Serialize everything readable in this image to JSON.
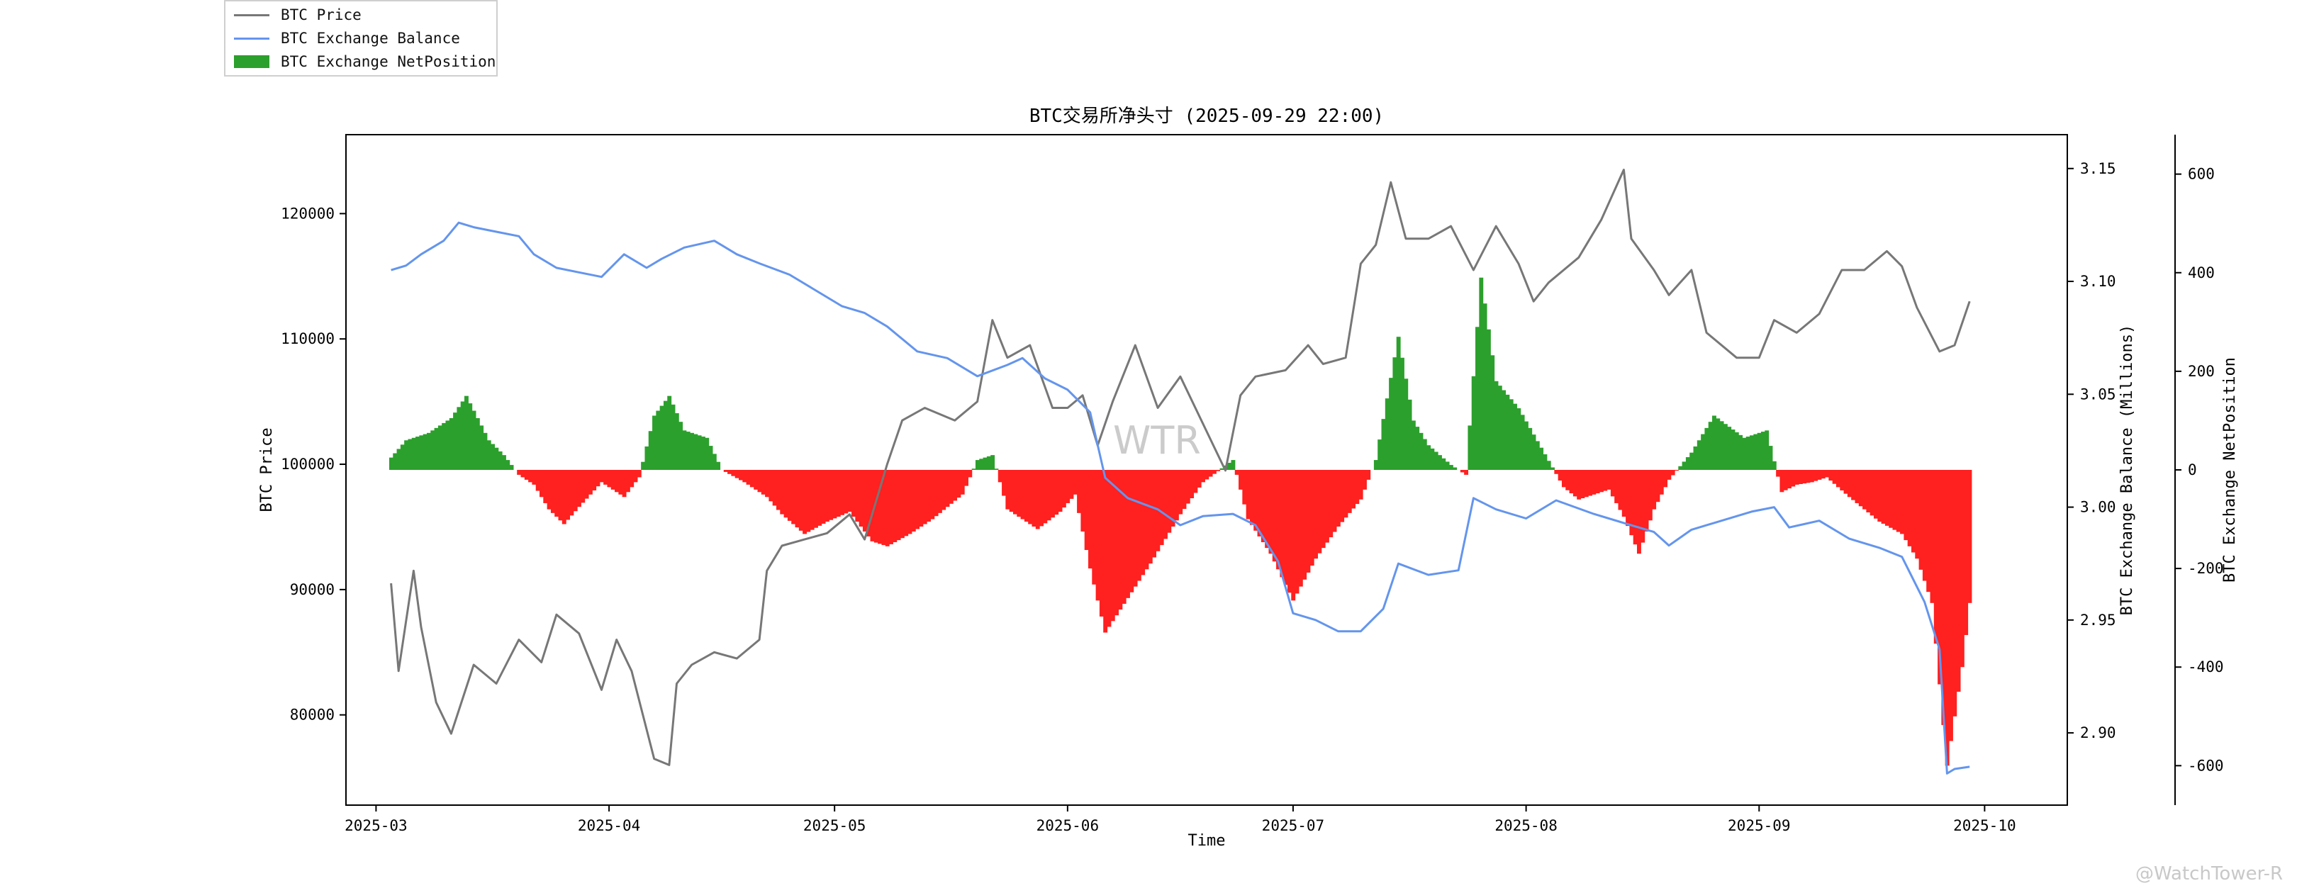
{
  "chart_data": {
    "type": "line",
    "title": "BTC交易所净头寸 (2025-09-29 22:00)",
    "xlabel": "Time",
    "ylabel_left": "BTC Price",
    "ylabel_right1": "BTC Exchange Balance (Millions)",
    "ylabel_right2": "BTC Exchange NetPosition",
    "x_ticks": [
      "2025-03",
      "2025-04",
      "2025-05",
      "2025-06",
      "2025-07",
      "2025-08",
      "2025-09",
      "2025-10"
    ],
    "x_range": [
      "2025-02-25",
      "2025-10-12"
    ],
    "y_left": {
      "range": [
        72800,
        126300
      ],
      "ticks": [
        "80000",
        "90000",
        "100000",
        "110000",
        "120000"
      ]
    },
    "y_right1": {
      "range": [
        2.868,
        3.165
      ],
      "ticks": [
        "2.90",
        "2.95",
        "3.00",
        "3.05",
        "3.10",
        "3.15"
      ]
    },
    "y_right2": {
      "range": [
        -680,
        680
      ],
      "ticks": [
        "-600",
        "-400",
        "-200",
        "0",
        "200",
        "400",
        "600"
      ]
    },
    "grid": false,
    "legend_position": "top-left",
    "series": [
      {
        "name": "BTC Price",
        "kind": "line",
        "axis": "left",
        "color": "#777777",
        "points": [
          [
            "2025-03-03",
            90500
          ],
          [
            "2025-03-04",
            83500
          ],
          [
            "2025-03-06",
            91500
          ],
          [
            "2025-03-07",
            87000
          ],
          [
            "2025-03-09",
            81000
          ],
          [
            "2025-03-11",
            78500
          ],
          [
            "2025-03-14",
            84000
          ],
          [
            "2025-03-17",
            82500
          ],
          [
            "2025-03-20",
            86000
          ],
          [
            "2025-03-23",
            84200
          ],
          [
            "2025-03-25",
            88000
          ],
          [
            "2025-03-28",
            86500
          ],
          [
            "2025-03-31",
            82000
          ],
          [
            "2025-04-02",
            86000
          ],
          [
            "2025-04-04",
            83500
          ],
          [
            "2025-04-07",
            76500
          ],
          [
            "2025-04-09",
            76000
          ],
          [
            "2025-04-10",
            82500
          ],
          [
            "2025-04-12",
            84000
          ],
          [
            "2025-04-15",
            85000
          ],
          [
            "2025-04-18",
            84500
          ],
          [
            "2025-04-21",
            86000
          ],
          [
            "2025-04-22",
            91500
          ],
          [
            "2025-04-24",
            93500
          ],
          [
            "2025-04-27",
            94000
          ],
          [
            "2025-04-30",
            94500
          ],
          [
            "2025-05-03",
            96000
          ],
          [
            "2025-05-05",
            94000
          ],
          [
            "2025-05-08",
            100000
          ],
          [
            "2025-05-10",
            103500
          ],
          [
            "2025-05-13",
            104500
          ],
          [
            "2025-05-17",
            103500
          ],
          [
            "2025-05-20",
            105000
          ],
          [
            "2025-05-22",
            111500
          ],
          [
            "2025-05-24",
            108500
          ],
          [
            "2025-05-27",
            109500
          ],
          [
            "2025-05-30",
            104500
          ],
          [
            "2025-06-01",
            104500
          ],
          [
            "2025-06-03",
            105500
          ],
          [
            "2025-06-05",
            101500
          ],
          [
            "2025-06-07",
            105000
          ],
          [
            "2025-06-10",
            109500
          ],
          [
            "2025-06-13",
            104500
          ],
          [
            "2025-06-16",
            107000
          ],
          [
            "2025-06-18",
            104500
          ],
          [
            "2025-06-22",
            99500
          ],
          [
            "2025-06-24",
            105500
          ],
          [
            "2025-06-26",
            107000
          ],
          [
            "2025-06-30",
            107500
          ],
          [
            "2025-07-03",
            109500
          ],
          [
            "2025-07-05",
            108000
          ],
          [
            "2025-07-08",
            108500
          ],
          [
            "2025-07-10",
            116000
          ],
          [
            "2025-07-12",
            117500
          ],
          [
            "2025-07-14",
            122500
          ],
          [
            "2025-07-16",
            118000
          ],
          [
            "2025-07-19",
            118000
          ],
          [
            "2025-07-22",
            119000
          ],
          [
            "2025-07-25",
            115500
          ],
          [
            "2025-07-28",
            119000
          ],
          [
            "2025-07-31",
            116000
          ],
          [
            "2025-08-02",
            113000
          ],
          [
            "2025-08-04",
            114500
          ],
          [
            "2025-08-08",
            116500
          ],
          [
            "2025-08-11",
            119500
          ],
          [
            "2025-08-14",
            123500
          ],
          [
            "2025-08-15",
            118000
          ],
          [
            "2025-08-18",
            115500
          ],
          [
            "2025-08-20",
            113500
          ],
          [
            "2025-08-23",
            115500
          ],
          [
            "2025-08-25",
            110500
          ],
          [
            "2025-08-29",
            108500
          ],
          [
            "2025-09-01",
            108500
          ],
          [
            "2025-09-03",
            111500
          ],
          [
            "2025-09-06",
            110500
          ],
          [
            "2025-09-09",
            112000
          ],
          [
            "2025-09-12",
            115500
          ],
          [
            "2025-09-15",
            115500
          ],
          [
            "2025-09-18",
            117000
          ],
          [
            "2025-09-20",
            115800
          ],
          [
            "2025-09-22",
            112500
          ],
          [
            "2025-09-25",
            109000
          ],
          [
            "2025-09-27",
            109500
          ],
          [
            "2025-09-29",
            113000
          ]
        ]
      },
      {
        "name": "BTC Exchange Balance",
        "kind": "line",
        "axis": "right1",
        "color": "#6495ED",
        "points": [
          [
            "2025-03-03",
            3.105
          ],
          [
            "2025-03-05",
            3.107
          ],
          [
            "2025-03-07",
            3.112
          ],
          [
            "2025-03-10",
            3.118
          ],
          [
            "2025-03-12",
            3.126
          ],
          [
            "2025-03-14",
            3.124
          ],
          [
            "2025-03-17",
            3.122
          ],
          [
            "2025-03-20",
            3.12
          ],
          [
            "2025-03-22",
            3.112
          ],
          [
            "2025-03-25",
            3.106
          ],
          [
            "2025-03-28",
            3.104
          ],
          [
            "2025-03-31",
            3.102
          ],
          [
            "2025-04-03",
            3.112
          ],
          [
            "2025-04-06",
            3.106
          ],
          [
            "2025-04-08",
            3.11
          ],
          [
            "2025-04-11",
            3.115
          ],
          [
            "2025-04-15",
            3.118
          ],
          [
            "2025-04-18",
            3.112
          ],
          [
            "2025-04-21",
            3.108
          ],
          [
            "2025-04-25",
            3.103
          ],
          [
            "2025-04-28",
            3.097
          ],
          [
            "2025-05-02",
            3.089
          ],
          [
            "2025-05-05",
            3.086
          ],
          [
            "2025-05-08",
            3.08
          ],
          [
            "2025-05-12",
            3.069
          ],
          [
            "2025-05-16",
            3.066
          ],
          [
            "2025-05-20",
            3.058
          ],
          [
            "2025-05-24",
            3.063
          ],
          [
            "2025-05-26",
            3.066
          ],
          [
            "2025-05-29",
            3.057
          ],
          [
            "2025-06-01",
            3.052
          ],
          [
            "2025-06-04",
            3.042
          ],
          [
            "2025-06-06",
            3.013
          ],
          [
            "2025-06-09",
            3.004
          ],
          [
            "2025-06-13",
            2.999
          ],
          [
            "2025-06-16",
            2.992
          ],
          [
            "2025-06-19",
            2.996
          ],
          [
            "2025-06-23",
            2.997
          ],
          [
            "2025-06-26",
            2.992
          ],
          [
            "2025-06-29",
            2.976
          ],
          [
            "2025-07-01",
            2.953
          ],
          [
            "2025-07-04",
            2.95
          ],
          [
            "2025-07-07",
            2.945
          ],
          [
            "2025-07-10",
            2.945
          ],
          [
            "2025-07-13",
            2.955
          ],
          [
            "2025-07-15",
            2.975
          ],
          [
            "2025-07-19",
            2.97
          ],
          [
            "2025-07-23",
            2.972
          ],
          [
            "2025-07-25",
            3.004
          ],
          [
            "2025-07-28",
            2.999
          ],
          [
            "2025-08-01",
            2.995
          ],
          [
            "2025-08-05",
            3.003
          ],
          [
            "2025-08-10",
            2.997
          ],
          [
            "2025-08-14",
            2.993
          ],
          [
            "2025-08-18",
            2.989
          ],
          [
            "2025-08-20",
            2.983
          ],
          [
            "2025-08-23",
            2.99
          ],
          [
            "2025-08-27",
            2.994
          ],
          [
            "2025-08-31",
            2.998
          ],
          [
            "2025-09-03",
            3.0
          ],
          [
            "2025-09-05",
            2.991
          ],
          [
            "2025-09-09",
            2.994
          ],
          [
            "2025-09-13",
            2.986
          ],
          [
            "2025-09-17",
            2.982
          ],
          [
            "2025-09-20",
            2.978
          ],
          [
            "2025-09-23",
            2.958
          ],
          [
            "2025-09-25",
            2.937
          ],
          [
            "2025-09-26",
            2.882
          ],
          [
            "2025-09-27",
            2.884
          ],
          [
            "2025-09-29",
            2.885
          ]
        ]
      },
      {
        "name": "BTC Exchange NetPosition",
        "kind": "bar",
        "axis": "right2",
        "color_positive": "#2ca02c",
        "color_negative": "#ff2020",
        "points": [
          [
            "2025-03-03",
            25
          ],
          [
            "2025-03-05",
            60
          ],
          [
            "2025-03-08",
            75
          ],
          [
            "2025-03-11",
            105
          ],
          [
            "2025-03-13",
            150
          ],
          [
            "2025-03-16",
            60
          ],
          [
            "2025-03-18",
            30
          ],
          [
            "2025-03-20",
            -10
          ],
          [
            "2025-03-22",
            -30
          ],
          [
            "2025-03-24",
            -80
          ],
          [
            "2025-03-26",
            -110
          ],
          [
            "2025-03-28",
            -75
          ],
          [
            "2025-03-31",
            -25
          ],
          [
            "2025-04-03",
            -55
          ],
          [
            "2025-04-05",
            -15
          ],
          [
            "2025-04-07",
            110
          ],
          [
            "2025-04-09",
            150
          ],
          [
            "2025-04-11",
            80
          ],
          [
            "2025-04-14",
            65
          ],
          [
            "2025-04-16",
            0
          ],
          [
            "2025-04-19",
            -25
          ],
          [
            "2025-04-22",
            -55
          ],
          [
            "2025-04-24",
            -90
          ],
          [
            "2025-04-27",
            -130
          ],
          [
            "2025-04-30",
            -105
          ],
          [
            "2025-05-03",
            -85
          ],
          [
            "2025-05-06",
            -145
          ],
          [
            "2025-05-08",
            -155
          ],
          [
            "2025-05-11",
            -130
          ],
          [
            "2025-05-14",
            -100
          ],
          [
            "2025-05-18",
            -50
          ],
          [
            "2025-05-20",
            20
          ],
          [
            "2025-05-22",
            30
          ],
          [
            "2025-05-24",
            -80
          ],
          [
            "2025-05-28",
            -120
          ],
          [
            "2025-05-31",
            -85
          ],
          [
            "2025-06-02",
            -50
          ],
          [
            "2025-06-04",
            -200
          ],
          [
            "2025-06-06",
            -330
          ],
          [
            "2025-06-09",
            -260
          ],
          [
            "2025-06-12",
            -190
          ],
          [
            "2025-06-16",
            -90
          ],
          [
            "2025-06-19",
            -25
          ],
          [
            "2025-06-23",
            20
          ],
          [
            "2025-06-25",
            -100
          ],
          [
            "2025-06-28",
            -170
          ],
          [
            "2025-07-01",
            -265
          ],
          [
            "2025-07-04",
            -180
          ],
          [
            "2025-07-07",
            -115
          ],
          [
            "2025-07-10",
            -60
          ],
          [
            "2025-07-12",
            20
          ],
          [
            "2025-07-15",
            270
          ],
          [
            "2025-07-17",
            100
          ],
          [
            "2025-07-19",
            50
          ],
          [
            "2025-07-22",
            10
          ],
          [
            "2025-07-24",
            -10
          ],
          [
            "2025-07-26",
            390
          ],
          [
            "2025-07-28",
            180
          ],
          [
            "2025-07-31",
            125
          ],
          [
            "2025-08-03",
            45
          ],
          [
            "2025-08-06",
            -35
          ],
          [
            "2025-08-08",
            -60
          ],
          [
            "2025-08-12",
            -40
          ],
          [
            "2025-08-14",
            -95
          ],
          [
            "2025-08-16",
            -170
          ],
          [
            "2025-08-18",
            -80
          ],
          [
            "2025-08-20",
            -20
          ],
          [
            "2025-08-23",
            35
          ],
          [
            "2025-08-26",
            110
          ],
          [
            "2025-08-30",
            65
          ],
          [
            "2025-09-02",
            80
          ],
          [
            "2025-09-04",
            -45
          ],
          [
            "2025-09-06",
            -30
          ],
          [
            "2025-09-08",
            -25
          ],
          [
            "2025-09-10",
            -15
          ],
          [
            "2025-09-13",
            -55
          ],
          [
            "2025-09-17",
            -105
          ],
          [
            "2025-09-20",
            -130
          ],
          [
            "2025-09-22",
            -180
          ],
          [
            "2025-09-24",
            -270
          ],
          [
            "2025-09-26",
            -600
          ],
          [
            "2025-09-28",
            -400
          ],
          [
            "2025-09-29",
            -270
          ]
        ]
      }
    ]
  },
  "watermark": {
    "center": "WTR",
    "corner": "@WatchTower-R"
  }
}
